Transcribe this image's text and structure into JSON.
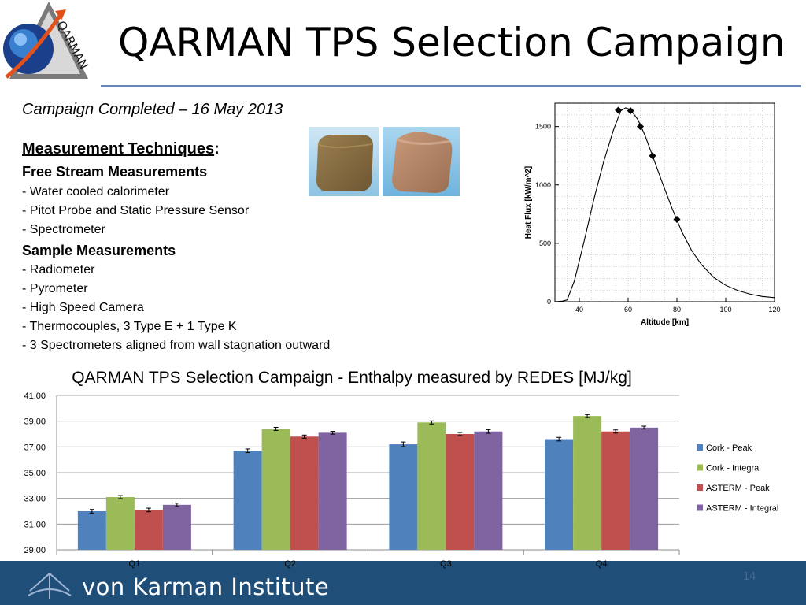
{
  "header": {
    "title": "QARMAN TPS Selection Campaign",
    "logo_text": "QARMAN"
  },
  "subtitle": "Campaign Completed – 16 May 2013",
  "techniques": {
    "heading": "Measurement Techniques",
    "heading_suffix": ":",
    "free_stream": {
      "heading": "Free Stream Measurements",
      "items": [
        "- Water cooled calorimeter",
        "- Pitot Probe and Static Pressure Sensor",
        "- Spectrometer"
      ]
    },
    "sample": {
      "heading": "Sample Measurements",
      "items": [
        "- Radiometer",
        "- Pyrometer",
        "- High Speed Camera",
        "- Thermocouples, 3 Type E + 1 Type K",
        "- 3 Spectrometers aligned from wall stagnation outward"
      ]
    }
  },
  "footer": {
    "institute": "von Karman Institute",
    "page_number": "14"
  },
  "colors": {
    "title_rule": "#6a86b4",
    "footer_band": "#1f4e79",
    "cork_peak": "#4f81bd",
    "cork_integral": "#9bbb59",
    "asterm_peak": "#c0504d",
    "asterm_integral": "#8064a2"
  },
  "chart_data": [
    {
      "type": "line",
      "title": "",
      "xlabel": "Altitude [km]",
      "ylabel": "Heat Flux [kW/m^2]",
      "xlim": [
        30,
        120
      ],
      "ylim": [
        0,
        1700
      ],
      "xticks": [
        "40",
        "60",
        "80",
        "100",
        "120"
      ],
      "yticks": [
        "0",
        "500",
        "1000",
        "1500"
      ],
      "grid": true,
      "series": [
        {
          "values": [
            [
              30,
              0
            ],
            [
              33,
              5
            ],
            [
              35,
              15
            ],
            [
              38,
              180
            ],
            [
              42,
              520
            ],
            [
              46,
              880
            ],
            [
              50,
              1200
            ],
            [
              54,
              1470
            ],
            [
              57,
              1635
            ],
            [
              59,
              1660
            ],
            [
              61,
              1645
            ],
            [
              64,
              1560
            ],
            [
              67,
              1420
            ],
            [
              70,
              1250
            ],
            [
              74,
              1020
            ],
            [
              78,
              800
            ],
            [
              82,
              600
            ],
            [
              86,
              440
            ],
            [
              90,
              320
            ],
            [
              95,
              210
            ],
            [
              100,
              140
            ],
            [
              105,
              95
            ],
            [
              110,
              65
            ],
            [
              115,
              45
            ],
            [
              120,
              35
            ]
          ]
        },
        {
          "markers": "diamond",
          "values": [
            [
              56,
              1640
            ],
            [
              61,
              1635
            ],
            [
              65,
              1500
            ],
            [
              70,
              1250
            ],
            [
              80,
              705
            ]
          ]
        }
      ]
    },
    {
      "type": "bar",
      "title": "QARMAN TPS Selection Campaign - Enthalpy measured by REDES [MJ/kg]",
      "categories": [
        "Q1",
        "Q2",
        "Q3",
        "Q4"
      ],
      "ylim": [
        29,
        41
      ],
      "yticks": [
        "29.00",
        "31.00",
        "33.00",
        "35.00",
        "37.00",
        "39.00",
        "41.00"
      ],
      "legend": "right",
      "series": [
        {
          "name": "Cork - Peak",
          "values": [
            32.0,
            36.7,
            37.2,
            37.6
          ],
          "errors": [
            0.08,
            0.08,
            0.12,
            0.08
          ]
        },
        {
          "name": "Cork - Integral",
          "values": [
            33.1,
            38.4,
            38.9,
            39.4
          ],
          "errors": [
            0.06,
            0.06,
            0.06,
            0.05
          ]
        },
        {
          "name": "ASTERM - Peak",
          "values": [
            32.1,
            37.8,
            38.0,
            38.2
          ],
          "errors": [
            0.08,
            0.06,
            0.06,
            0.06
          ]
        },
        {
          "name": "ASTERM - Integral",
          "values": [
            32.5,
            38.1,
            38.2,
            38.5
          ],
          "errors": [
            0.07,
            0.05,
            0.08,
            0.05
          ]
        }
      ]
    }
  ]
}
